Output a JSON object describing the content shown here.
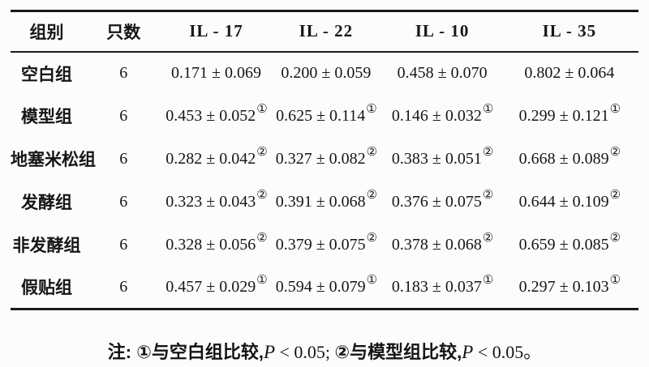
{
  "table": {
    "columns": [
      "组别",
      "只数",
      "IL - 17",
      "IL - 22",
      "IL - 10",
      "IL - 35"
    ],
    "rows": [
      {
        "group": "空白组",
        "n": "6",
        "cells": [
          {
            "text": "0.171 ± 0.069",
            "sup": ""
          },
          {
            "text": "0.200 ± 0.059",
            "sup": ""
          },
          {
            "text": "0.458 ± 0.070",
            "sup": ""
          },
          {
            "text": "0.802 ± 0.064",
            "sup": ""
          }
        ]
      },
      {
        "group": "模型组",
        "n": "6",
        "cells": [
          {
            "text": "0.453 ± 0.052",
            "sup": "①"
          },
          {
            "text": "0.625 ± 0.114",
            "sup": "①"
          },
          {
            "text": "0.146 ± 0.032",
            "sup": "①"
          },
          {
            "text": "0.299 ± 0.121",
            "sup": "①"
          }
        ]
      },
      {
        "group": "地塞米松组",
        "n": "6",
        "cells": [
          {
            "text": "0.282 ± 0.042",
            "sup": "②"
          },
          {
            "text": "0.327 ± 0.082",
            "sup": "②"
          },
          {
            "text": "0.383 ± 0.051",
            "sup": "②"
          },
          {
            "text": "0.668 ± 0.089",
            "sup": "②"
          }
        ]
      },
      {
        "group": "发酵组",
        "n": "6",
        "cells": [
          {
            "text": "0.323 ± 0.043",
            "sup": "②"
          },
          {
            "text": "0.391 ± 0.068",
            "sup": "②"
          },
          {
            "text": "0.376 ± 0.075",
            "sup": "②"
          },
          {
            "text": "0.644 ± 0.109",
            "sup": "②"
          }
        ]
      },
      {
        "group": "非发酵组",
        "n": "6",
        "cells": [
          {
            "text": "0.328 ± 0.056",
            "sup": "②"
          },
          {
            "text": "0.379 ± 0.075",
            "sup": "②"
          },
          {
            "text": "0.378 ± 0.068",
            "sup": "②"
          },
          {
            "text": "0.659 ± 0.085",
            "sup": "②"
          }
        ]
      },
      {
        "group": "假贴组",
        "n": "6",
        "cells": [
          {
            "text": "0.457 ± 0.029",
            "sup": "①"
          },
          {
            "text": "0.594 ± 0.079",
            "sup": "①"
          },
          {
            "text": "0.183 ± 0.037",
            "sup": "①"
          },
          {
            "text": "0.297 ± 0.103",
            "sup": "①"
          }
        ]
      }
    ]
  },
  "note": {
    "label": "注: ",
    "seg1": "①与空白组比较,",
    "p1": "P",
    "rel1": " < 0.05; ",
    "seg2": "②与模型组比较,",
    "p2": "P",
    "rel2": " < 0.05。"
  },
  "colors": {
    "text": "#161616",
    "rule": "#1a1a1a",
    "background": "#fcfcfc"
  }
}
